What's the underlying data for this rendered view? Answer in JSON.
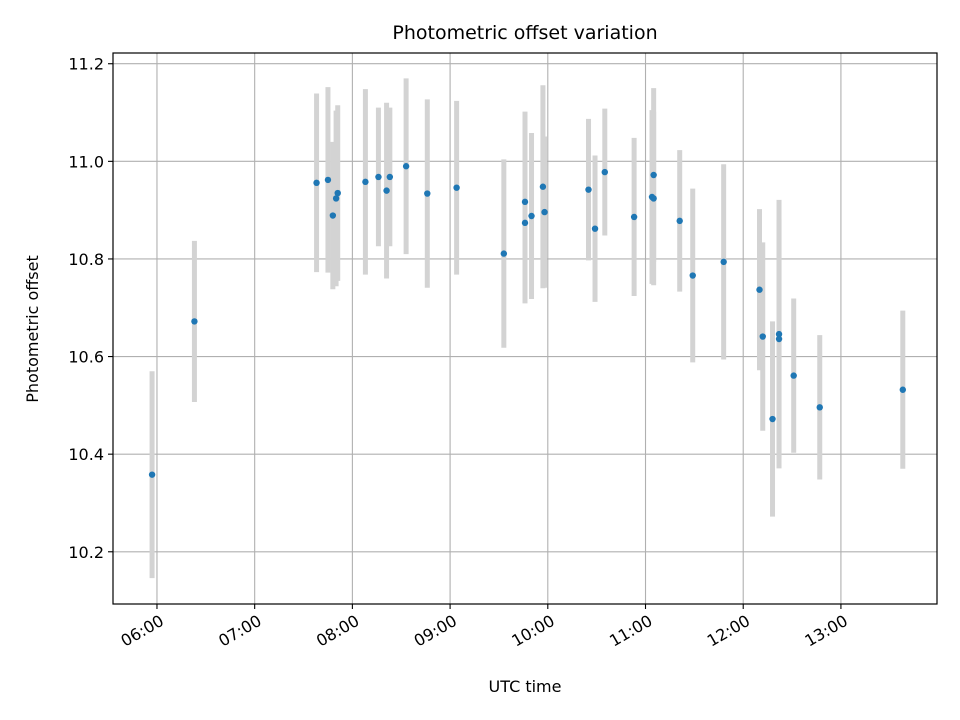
{
  "chart_data": {
    "type": "scatter",
    "title": "Photometric offset variation",
    "xlabel": "UTC time",
    "ylabel": "Photometric offset",
    "grid": true,
    "xlim": [
      "05:33",
      "13:59"
    ],
    "ylim": [
      10.093,
      11.222
    ],
    "x_ticks": [
      "06:00",
      "07:00",
      "08:00",
      "09:00",
      "10:00",
      "11:00",
      "12:00",
      "13:00"
    ],
    "y_ticks": [
      "10.2",
      "10.4",
      "10.6",
      "10.8",
      "11.0",
      "11.2"
    ],
    "colors": {
      "point": "#1f77b4",
      "errorbar": "#d3d3d3",
      "grid": "#b0b0b0"
    },
    "points": [
      {
        "x": "05:57",
        "y": 10.358,
        "err": 0.212
      },
      {
        "x": "06:23",
        "y": 10.672,
        "err": 0.165
      },
      {
        "x": "07:38",
        "y": 10.956,
        "err": 0.183
      },
      {
        "x": "07:45",
        "y": 10.962,
        "err": 0.19
      },
      {
        "x": "07:48",
        "y": 10.889,
        "err": 0.151
      },
      {
        "x": "07:50",
        "y": 10.924,
        "err": 0.18
      },
      {
        "x": "07:51",
        "y": 10.935,
        "err": 0.18
      },
      {
        "x": "08:08",
        "y": 10.958,
        "err": 0.19
      },
      {
        "x": "08:16",
        "y": 10.968,
        "err": 0.142
      },
      {
        "x": "08:21",
        "y": 10.94,
        "err": 0.18
      },
      {
        "x": "08:23",
        "y": 10.968,
        "err": 0.142
      },
      {
        "x": "08:33",
        "y": 10.99,
        "err": 0.18
      },
      {
        "x": "08:46",
        "y": 10.934,
        "err": 0.193
      },
      {
        "x": "09:04",
        "y": 10.946,
        "err": 0.178
      },
      {
        "x": "09:33",
        "y": 10.811,
        "err": 0.193
      },
      {
        "x": "09:46",
        "y": 10.917,
        "err": 0.185
      },
      {
        "x": "09:46",
        "y": 10.874,
        "err": 0.165
      },
      {
        "x": "09:50",
        "y": 10.888,
        "err": 0.17
      },
      {
        "x": "09:57",
        "y": 10.948,
        "err": 0.208
      },
      {
        "x": "09:58",
        "y": 10.896,
        "err": 0.155
      },
      {
        "x": "10:25",
        "y": 10.942,
        "err": 0.145
      },
      {
        "x": "10:29",
        "y": 10.862,
        "err": 0.15
      },
      {
        "x": "10:35",
        "y": 10.978,
        "err": 0.13
      },
      {
        "x": "10:53",
        "y": 10.886,
        "err": 0.162
      },
      {
        "x": "11:04",
        "y": 10.927,
        "err": 0.178
      },
      {
        "x": "11:05",
        "y": 10.972,
        "err": 0.178
      },
      {
        "x": "11:05",
        "y": 10.924,
        "err": 0.178
      },
      {
        "x": "11:21",
        "y": 10.878,
        "err": 0.145
      },
      {
        "x": "11:29",
        "y": 10.766,
        "err": 0.178
      },
      {
        "x": "11:48",
        "y": 10.794,
        "err": 0.2
      },
      {
        "x": "12:10",
        "y": 10.737,
        "err": 0.165
      },
      {
        "x": "12:12",
        "y": 10.641,
        "err": 0.193
      },
      {
        "x": "12:18",
        "y": 10.472,
        "err": 0.2
      },
      {
        "x": "12:22",
        "y": 10.646,
        "err": 0.275
      },
      {
        "x": "12:22",
        "y": 10.636,
        "err": 0.245
      },
      {
        "x": "12:31",
        "y": 10.561,
        "err": 0.158
      },
      {
        "x": "12:47",
        "y": 10.496,
        "err": 0.148
      },
      {
        "x": "13:38",
        "y": 10.532,
        "err": 0.162
      }
    ]
  }
}
